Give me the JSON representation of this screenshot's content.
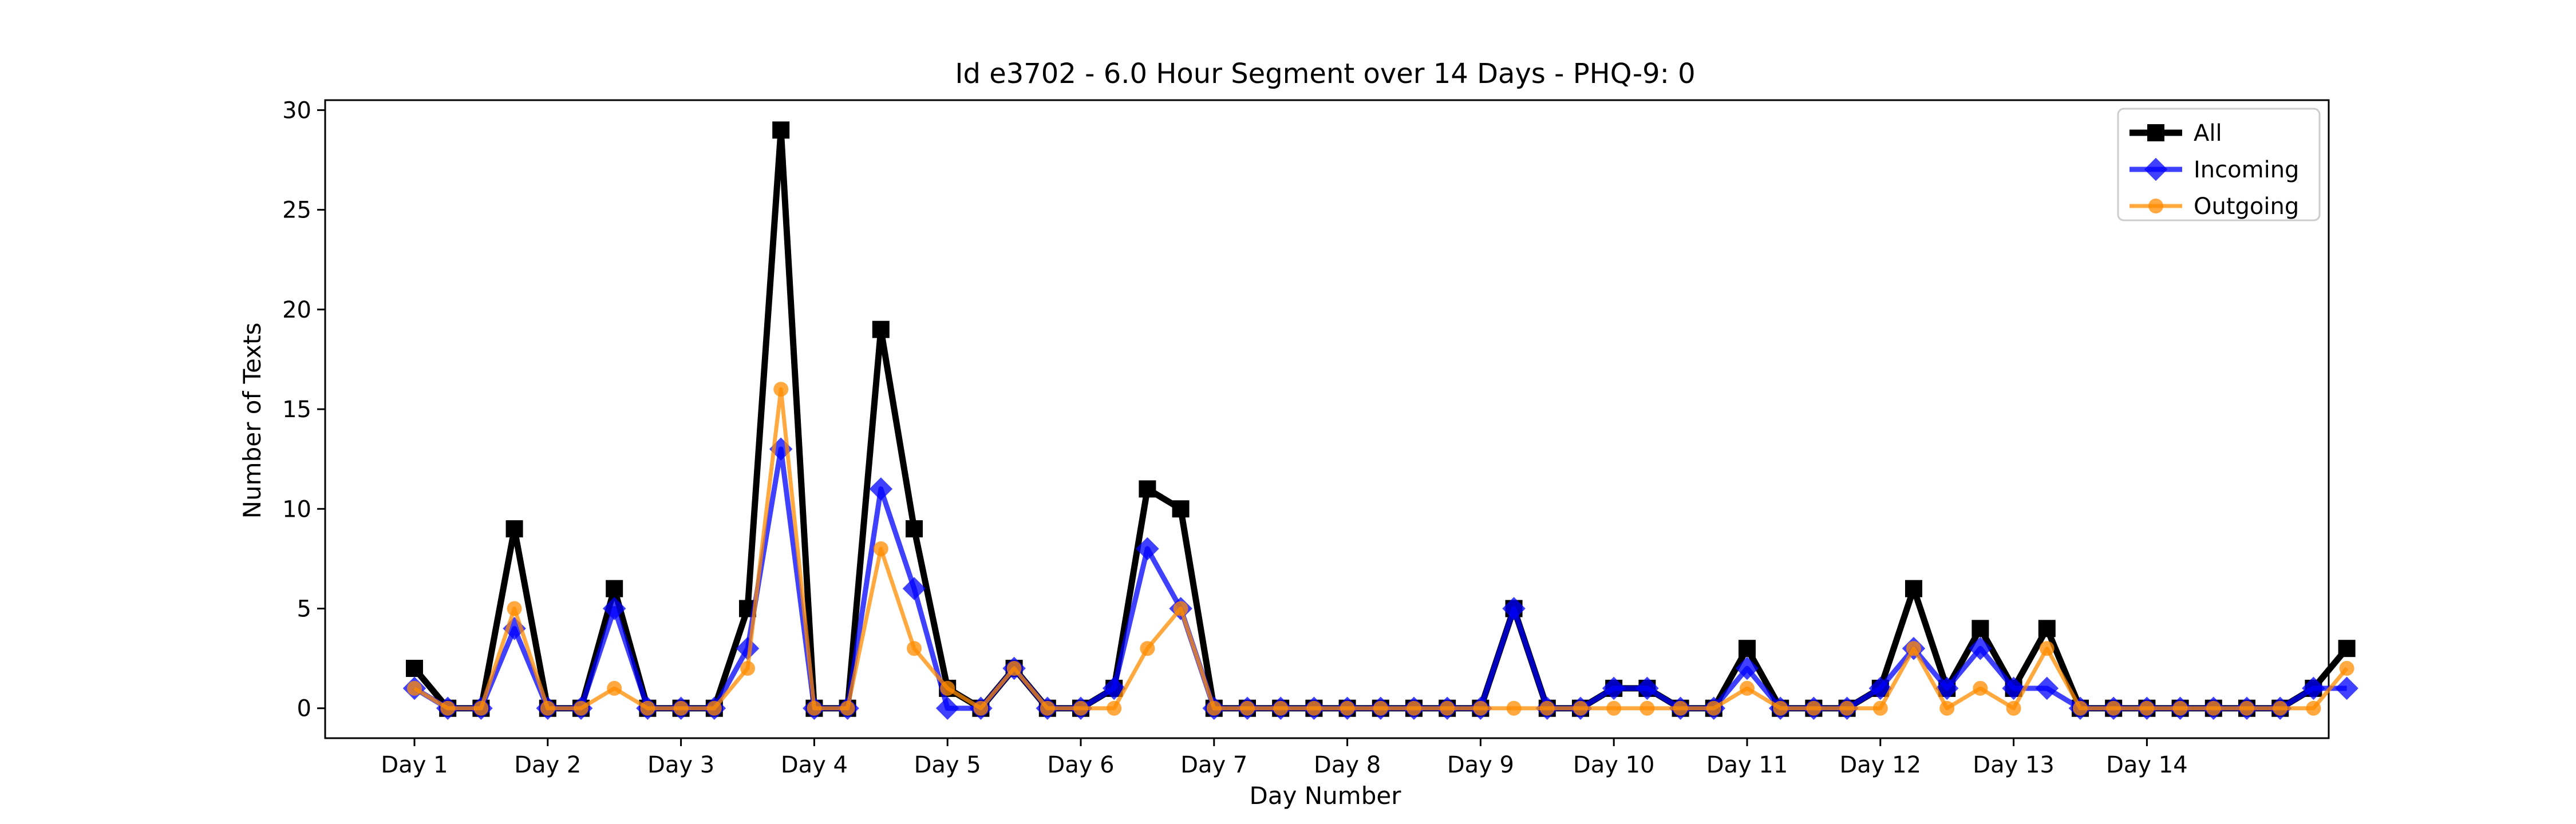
{
  "chart_data": {
    "type": "line",
    "title": "Id e3702 - 6.0 Hour Segment over 14 Days - PHQ-9: 0",
    "xlabel": "Day Number",
    "ylabel": "Number of Texts",
    "x_tick_labels": [
      "Day 1",
      "Day 2",
      "Day 3",
      "Day 4",
      "Day 5",
      "Day 6",
      "Day 7",
      "Day 8",
      "Day 9",
      "Day 10",
      "Day 11",
      "Day 12",
      "Day 13",
      "Day 14"
    ],
    "y_tick_labels": [
      "0",
      "5",
      "10",
      "15",
      "20",
      "25",
      "30"
    ],
    "ylim": [
      -1.5,
      30.5
    ],
    "grid": false,
    "legend_position": "top-right",
    "series": [
      {
        "name": "All",
        "color": "#000000",
        "marker": "square",
        "values": [
          2,
          0,
          0,
          9,
          0,
          0,
          6,
          0,
          0,
          0,
          5,
          29,
          0,
          0,
          19,
          9,
          1,
          0,
          2,
          0,
          0,
          1,
          11,
          10,
          0,
          0,
          0,
          0,
          0,
          0,
          0,
          0,
          0,
          5,
          0,
          0,
          1,
          1,
          0,
          0,
          3,
          0,
          0,
          0,
          1,
          6,
          1,
          4,
          1,
          4,
          0,
          0,
          0,
          0,
          0,
          0,
          0,
          1,
          3
        ]
      },
      {
        "name": "Incoming",
        "color": "#0000ff",
        "marker": "diamond",
        "values": [
          1,
          0,
          0,
          4,
          0,
          0,
          5,
          0,
          0,
          0,
          3,
          13,
          0,
          0,
          11,
          6,
          0,
          0,
          2,
          0,
          0,
          1,
          8,
          5,
          0,
          0,
          0,
          0,
          0,
          0,
          0,
          0,
          0,
          5,
          0,
          0,
          1,
          1,
          0,
          0,
          2,
          0,
          0,
          0,
          1,
          3,
          1,
          3,
          1,
          1,
          0,
          0,
          0,
          0,
          0,
          0,
          0,
          1,
          1
        ]
      },
      {
        "name": "Outgoing",
        "color": "#ff8c00",
        "marker": "circle",
        "values": [
          1,
          0,
          0,
          5,
          0,
          0,
          1,
          0,
          0,
          0,
          2,
          16,
          0,
          0,
          8,
          3,
          1,
          0,
          2,
          0,
          0,
          0,
          3,
          5,
          0,
          0,
          0,
          0,
          0,
          0,
          0,
          0,
          0,
          0,
          0,
          0,
          0,
          0,
          0,
          0,
          1,
          0,
          0,
          0,
          0,
          3,
          0,
          1,
          0,
          3,
          0,
          0,
          0,
          0,
          0,
          0,
          0,
          0,
          2
        ]
      }
    ]
  }
}
